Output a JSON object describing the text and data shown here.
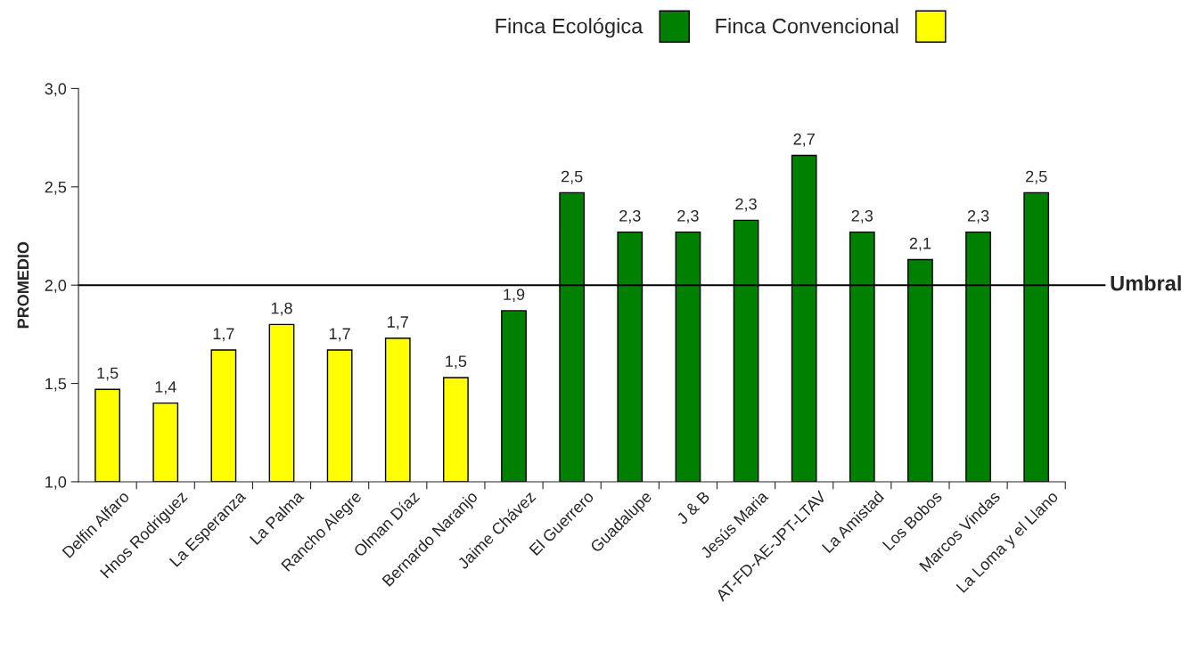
{
  "chart_data": {
    "type": "bar",
    "categories": [
      "Delfin Alfaro",
      "Hnos Rodriguez",
      "La Esperanza",
      "La Palma",
      "Rancho Alegre",
      "Olman Díaz",
      "Bernardo Naranjo",
      "Jaime Chávez",
      "El Guerrero",
      "Guadalupe",
      "J & B",
      "Jesús Maria",
      "AT-FD-AE-JPT-LTAV",
      "La Amistad",
      "Los Bobos",
      "Marcos Vindas",
      "La Loma y el Llano"
    ],
    "series": [
      {
        "name": "Finca Ecológica",
        "color": "#008000",
        "values": [
          null,
          null,
          null,
          null,
          null,
          null,
          null,
          1.87,
          2.47,
          2.27,
          2.27,
          2.33,
          2.66,
          2.27,
          2.13,
          2.27,
          2.47
        ],
        "value_labels": [
          null,
          null,
          null,
          null,
          null,
          null,
          null,
          "1,9",
          "2,5",
          "2,3",
          "2,3",
          "2,3",
          "2,7",
          "2,3",
          "2,1",
          "2,3",
          "2,5"
        ]
      },
      {
        "name": "Finca Convencional",
        "color": "#ffff00",
        "values": [
          1.47,
          1.4,
          1.67,
          1.8,
          1.67,
          1.73,
          1.53,
          null,
          null,
          null,
          null,
          null,
          null,
          null,
          null,
          null,
          null
        ],
        "value_labels": [
          "1,5",
          "1,4",
          "1,7",
          "1,8",
          "1,7",
          "1,7",
          "1,5",
          null,
          null,
          null,
          null,
          null,
          null,
          null,
          null,
          null,
          null
        ]
      }
    ],
    "ylabel": "PROMEDIO",
    "ylim": [
      1.0,
      3.0
    ],
    "yticks": [
      {
        "value": 1.0,
        "label": "1,0"
      },
      {
        "value": 1.5,
        "label": "1,5"
      },
      {
        "value": 2.0,
        "label": "2,0"
      },
      {
        "value": 2.5,
        "label": "2,5"
      },
      {
        "value": 3.0,
        "label": "3,0"
      }
    ],
    "ref_lines": [
      {
        "axis": "y",
        "value": 2.0,
        "label": "Umbral",
        "color": "#000000"
      }
    ],
    "legend": "top",
    "grid": false
  }
}
